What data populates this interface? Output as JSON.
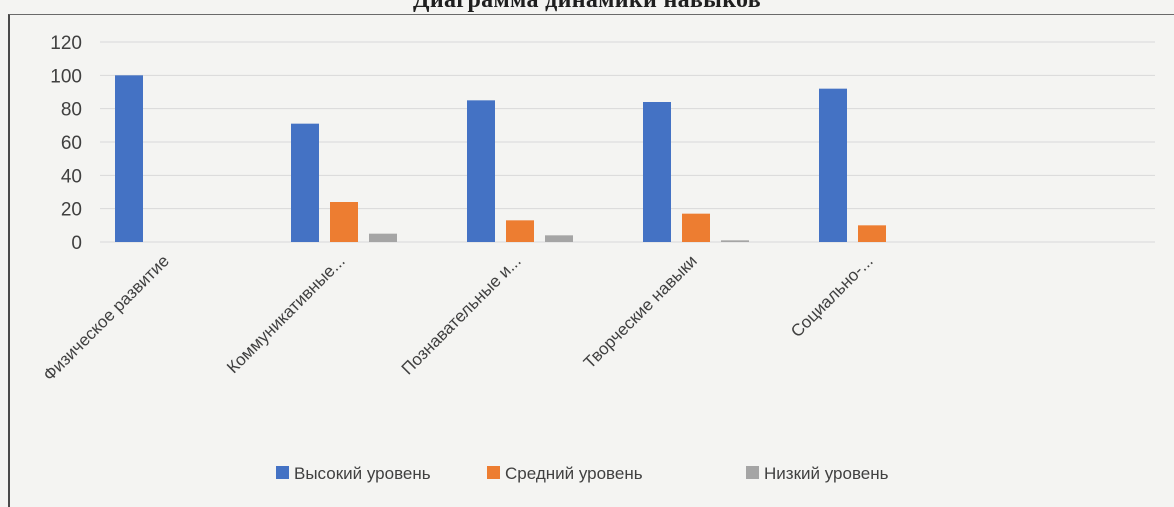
{
  "page": {
    "heading": "Диаграмма динамики навыков"
  },
  "colors": {
    "high": "#4472c4",
    "medium": "#ed7d31",
    "low": "#a5a5a5",
    "grid": "#d9d9d9",
    "text": "#404040"
  },
  "chart_data": {
    "type": "bar",
    "title": "",
    "xlabel": "",
    "ylabel": "",
    "ylim": [
      0,
      120
    ],
    "yticks": [
      0,
      20,
      40,
      60,
      80,
      100,
      120
    ],
    "grid": true,
    "legend_position": "bottom",
    "categories": [
      "Физическое развитие",
      "Коммуникативные...",
      "Познавательные и...",
      "Творческие навыки",
      "Социально-..."
    ],
    "series": [
      {
        "name": "Высокий уровень",
        "color": "#4472c4",
        "values": [
          100,
          71,
          85,
          84,
          92
        ]
      },
      {
        "name": "Средний уровень",
        "color": "#ed7d31",
        "values": [
          0,
          24,
          13,
          17,
          10
        ]
      },
      {
        "name": "Низкий уровень",
        "color": "#a5a5a5",
        "values": [
          0,
          5,
          4,
          1,
          0
        ]
      }
    ]
  }
}
